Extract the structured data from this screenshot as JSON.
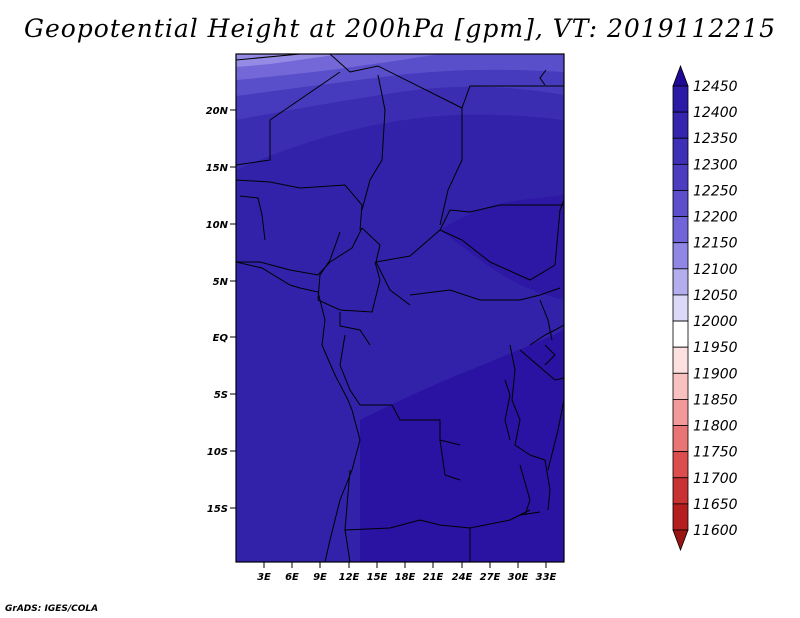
{
  "title": "Geopotential Height at 200hPa [gpm], VT: 2019112215",
  "credit": "GrADS: IGES/COLA",
  "map": {
    "lat_ticks": [
      "20N",
      "15N",
      "10N",
      "5N",
      "EQ",
      "5S",
      "10S",
      "15S"
    ],
    "lon_ticks": [
      "3E",
      "6E",
      "9E",
      "12E",
      "15E",
      "18E",
      "21E",
      "24E",
      "27E",
      "30E",
      "33E"
    ]
  },
  "colorbar": {
    "labels": [
      "12450",
      "12400",
      "12350",
      "12300",
      "12250",
      "12200",
      "12150",
      "12100",
      "12050",
      "12000",
      "11950",
      "11900",
      "11850",
      "11800",
      "11750",
      "11700",
      "11650",
      "11600"
    ],
    "colors": [
      "#1e0a96",
      "#2a1aa6",
      "#3424ae",
      "#3e30b6",
      "#4a3dc0",
      "#5b4fcc",
      "#7064d8",
      "#9086e4",
      "#b5aeee",
      "#dcd8f8",
      "#ffffff",
      "#fde0e0",
      "#f9c0c0",
      "#f29a9a",
      "#e87474",
      "#dc4e4e",
      "#c83232",
      "#b41e1e",
      "#9a1414"
    ]
  }
}
